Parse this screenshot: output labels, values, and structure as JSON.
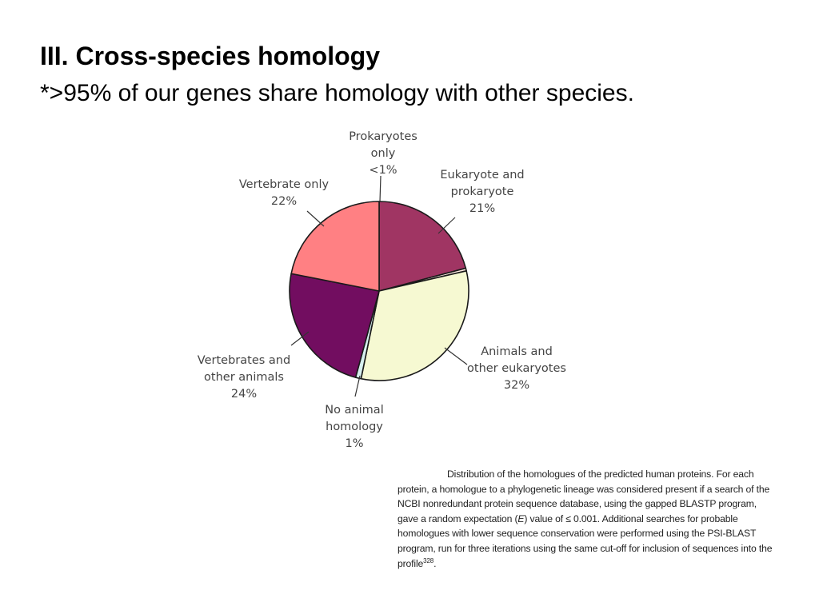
{
  "slide": {
    "title": "III. Cross-species homology",
    "subtitle": "*>95% of our genes share homology with other species."
  },
  "chart_data": {
    "type": "pie",
    "title": "",
    "slices": [
      {
        "key": "euk_prok",
        "label_lines": [
          "Eukaryote and",
          "prokaryote",
          "21%"
        ],
        "value": 21,
        "color": "#A03563"
      },
      {
        "key": "prok_only",
        "label_lines": [
          "Prokaryotes",
          "only",
          "<1%"
        ],
        "value": 0.5,
        "color": "#FDE9E0"
      },
      {
        "key": "animals_euk",
        "label_lines": [
          "Animals and",
          "other eukaryotes",
          "32%"
        ],
        "value": 32,
        "color": "#F6F9D2"
      },
      {
        "key": "no_animal",
        "label_lines": [
          "No animal",
          "homology",
          "1%"
        ],
        "value": 1,
        "color": "#D7EFEF"
      },
      {
        "key": "vert_animals",
        "label_lines": [
          "Vertebrates and",
          "other animals",
          "24%"
        ],
        "value": 24,
        "color": "#720D60"
      },
      {
        "key": "vert_only",
        "label_lines": [
          "Vertebrate only",
          "22%"
        ],
        "value": 22,
        "color": "#FF8083"
      }
    ]
  },
  "caption": {
    "part1": "Distribution of the homologues of the predicted human proteins. For each protein, a homologue to a phylogenetic lineage was considered present if a search of the NCBI nonredundant protein sequence database, using the gapped BLASTP program, gave a random expectation (",
    "italic": "E",
    "part2": ") value of ≤ 0.001. Additional searches for probable homologues with lower sequence conservation were performed using the PSI-BLAST program, run for three iterations using the same cut-off for inclusion of sequences into the profile",
    "sup": "328",
    "part3": "."
  }
}
